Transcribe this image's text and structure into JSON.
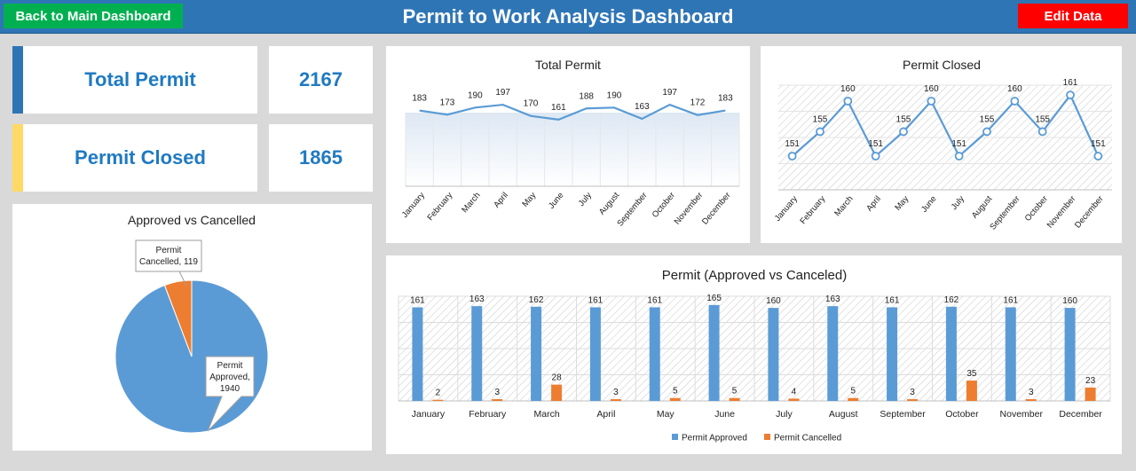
{
  "header": {
    "back_label": "Back to Main Dashboard",
    "title": "Permit to Work Analysis Dashboard",
    "edit_label": "Edit Data"
  },
  "colors": {
    "header": "#2e75b6",
    "back": "#00b050",
    "edit": "#ff0000",
    "blue": "#5b9bd5",
    "orange": "#ed7d31",
    "kpi_text": "#1f7ac2",
    "accent_blue": "#2e75b6",
    "accent_yellow": "#ffd966"
  },
  "kpi": [
    {
      "label": "Total Permit",
      "value": "2167"
    },
    {
      "label": "Permit Closed",
      "value": "1865"
    }
  ],
  "chart_data": [
    {
      "id": "total",
      "type": "line",
      "title": "Total Permit",
      "categories": [
        "January",
        "February",
        "March",
        "April",
        "May",
        "June",
        "July",
        "August",
        "September",
        "October",
        "November",
        "December"
      ],
      "values": [
        183,
        173,
        190,
        197,
        170,
        161,
        188,
        190,
        163,
        197,
        172,
        183
      ],
      "ylim": [
        0,
        210
      ]
    },
    {
      "id": "closed",
      "type": "line",
      "title": "Permit Closed",
      "categories": [
        "January",
        "February",
        "March",
        "April",
        "May",
        "June",
        "July",
        "August",
        "September",
        "October",
        "November",
        "December"
      ],
      "values": [
        151,
        155,
        160,
        151,
        155,
        160,
        151,
        155,
        160,
        155,
        161,
        151
      ],
      "ylim": [
        149,
        162
      ]
    },
    {
      "id": "pie",
      "type": "pie",
      "title": "Approved vs Cancelled",
      "slices": [
        {
          "name": "Permit Approved",
          "value": 1940,
          "label_lines": [
            "Permit",
            "Approved,",
            "1940"
          ]
        },
        {
          "name": "Permit Cancelled",
          "value": 119,
          "label_lines": [
            "Permit",
            "Cancelled, 119"
          ]
        }
      ]
    },
    {
      "id": "bars",
      "type": "bar",
      "title": "Permit (Approved vs Canceled)",
      "categories": [
        "January",
        "February",
        "March",
        "April",
        "May",
        "June",
        "July",
        "August",
        "September",
        "October",
        "November",
        "December"
      ],
      "series": [
        {
          "name": "Permit Approved",
          "values": [
            161,
            163,
            162,
            161,
            161,
            165,
            160,
            163,
            161,
            162,
            161,
            160
          ]
        },
        {
          "name": "Permit Cancelled",
          "values": [
            2,
            3,
            28,
            3,
            5,
            5,
            4,
            5,
            3,
            35,
            3,
            23
          ]
        }
      ],
      "ylim": [
        0,
        180
      ]
    }
  ]
}
